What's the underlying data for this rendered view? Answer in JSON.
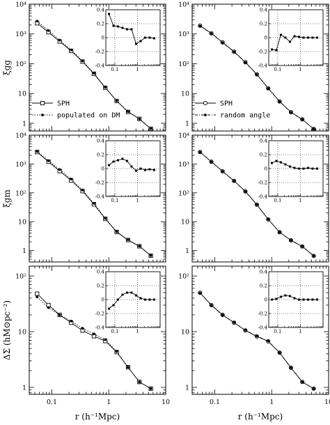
{
  "chart_data": {
    "type": "line",
    "panel_grid": {
      "rows": 3,
      "columns": 2
    },
    "xlabel": "r (h⁻¹Mpc)",
    "xscale": "log",
    "xlim": [
      0.04,
      10
    ],
    "x_ticks": [
      "0.1",
      "1",
      "10"
    ],
    "rows": [
      {
        "ylabel": "ξgg",
        "ylim": [
          0.55,
          10000
        ],
        "yscale": "log",
        "y_ticks": [
          "1",
          "10",
          "10²",
          "10³",
          "10⁴"
        ]
      },
      {
        "ylabel": "ξgm",
        "ylim": [
          0.4,
          10000
        ],
        "yscale": "log",
        "y_ticks": [
          "1",
          "10",
          "10²",
          "10³",
          "10⁴"
        ]
      },
      {
        "ylabel": "ΔΣ (hM⊙pc⁻²)",
        "ylim": [
          0.75,
          150
        ],
        "yscale": "log",
        "y_ticks": [
          "1",
          "10",
          "10²"
        ]
      }
    ],
    "panels": [
      {
        "row": 0,
        "col": 0,
        "legend": [
          "SPH",
          "populated on DM"
        ],
        "series": [
          {
            "name": "SPH",
            "style": "solid-open-square",
            "x": [
              0.055,
              0.087,
              0.137,
              0.218,
              0.345,
              0.548,
              0.868,
              1.376,
              2.18,
              3.45,
              5.48
            ],
            "y": [
              2300,
              1150,
              560,
              270,
              118,
              46,
              15.5,
              5.6,
              2.4,
              1.4,
              0.65
            ]
          },
          {
            "name": "populated on DM",
            "style": "dotted-filled-circle",
            "x": [
              0.055,
              0.087,
              0.137,
              0.218,
              0.345,
              0.548,
              0.868,
              1.376,
              2.18,
              3.45,
              5.48
            ],
            "y": [
              2700,
              1300,
              620,
              290,
              124,
              48,
              16,
              5.7,
              2.45,
              1.4,
              0.66
            ]
          }
        ],
        "inset": {
          "ylim": [
            -0.4,
            0.4
          ],
          "y_ticks": [
            "-0.4",
            "-0.2",
            "0",
            "0.2",
            "0.4"
          ],
          "x_ticks": [
            "0.1",
            "1"
          ],
          "x": [
            0.055,
            0.087,
            0.137,
            0.218,
            0.345,
            0.548,
            0.868,
            1.376,
            2.18,
            3.45,
            5.48
          ],
          "y": [
            0.34,
            0.17,
            0.16,
            0.14,
            0.12,
            0.12,
            -0.09,
            -0.05,
            0.0,
            0.0,
            -0.01
          ]
        }
      },
      {
        "row": 0,
        "col": 1,
        "legend": [
          "SPH",
          "random angle"
        ],
        "series": [
          {
            "name": "SPH",
            "style": "solid-open-circle",
            "x": [
              0.055,
              0.087,
              0.137,
              0.218,
              0.345,
              0.548,
              0.868,
              1.376,
              2.18,
              3.45,
              5.48
            ],
            "y": [
              1900,
              1050,
              520,
              255,
              112,
              44,
              15,
              5.4,
              2.35,
              1.35,
              0.64
            ]
          },
          {
            "name": "random angle",
            "style": "dash-dot-filled-circle",
            "x": [
              0.055,
              0.087,
              0.137,
              0.218,
              0.345,
              0.548,
              0.868,
              1.376,
              2.18,
              3.45,
              5.48
            ],
            "y": [
              1850,
              1040,
              510,
              250,
              110,
              43.5,
              14.8,
              5.35,
              2.33,
              1.34,
              0.64
            ]
          }
        ],
        "inset": {
          "ylim": [
            -0.4,
            0.4
          ],
          "y_ticks": [
            "-0.4",
            "-0.2",
            "0",
            "0.2",
            "0.4"
          ],
          "x_ticks": [
            "0.1",
            "1"
          ],
          "x": [
            0.055,
            0.087,
            0.137,
            0.218,
            0.345,
            0.548,
            0.868,
            1.376,
            2.18,
            3.45,
            5.48
          ],
          "y": [
            -0.17,
            -0.18,
            0.04,
            0.0,
            -0.06,
            0.02,
            0.01,
            0.0,
            0.0,
            0.0,
            0.0
          ]
        }
      },
      {
        "row": 1,
        "col": 0,
        "series": [
          {
            "name": "SPH",
            "style": "solid-open-square",
            "x": [
              0.055,
              0.087,
              0.137,
              0.218,
              0.345,
              0.548,
              0.868,
              1.376,
              2.18,
              3.45,
              5.48
            ],
            "y": [
              2600,
              1200,
              570,
              270,
              115,
              40,
              12.5,
              4.4,
              2.3,
              1.4,
              0.66
            ]
          },
          {
            "name": "populated on DM",
            "style": "dotted-filled-circle",
            "x": [
              0.055,
              0.087,
              0.137,
              0.218,
              0.345,
              0.548,
              0.868,
              1.376,
              2.18,
              3.45,
              5.48
            ],
            "y": [
              2700,
              1300,
              640,
              300,
              125,
              43,
              13,
              4.5,
              2.35,
              1.42,
              0.67
            ]
          }
        ],
        "inset": {
          "ylim": [
            -0.4,
            0.4
          ],
          "y_ticks": [
            "-0.4",
            "-0.2",
            "0",
            "0.2",
            "0.4"
          ],
          "x_ticks": [
            "0.1",
            "1"
          ],
          "x": [
            0.055,
            0.087,
            0.137,
            0.218,
            0.345,
            0.548,
            0.868,
            1.376,
            2.18,
            3.45,
            5.48
          ],
          "y": [
            0.05,
            0.1,
            0.12,
            0.14,
            0.11,
            0.03,
            -0.03,
            0.0,
            -0.02,
            -0.01,
            -0.02
          ]
        }
      },
      {
        "row": 1,
        "col": 1,
        "series": [
          {
            "name": "SPH",
            "style": "solid-open-circle",
            "x": [
              0.055,
              0.087,
              0.137,
              0.218,
              0.345,
              0.548,
              0.868,
              1.376,
              2.18,
              3.45,
              5.48
            ],
            "y": [
              2600,
              1200,
              560,
              260,
              112,
              39,
              12,
              4.3,
              2.25,
              1.38,
              0.65
            ]
          },
          {
            "name": "random angle",
            "style": "dash-dot-filled-circle",
            "x": [
              0.055,
              0.087,
              0.137,
              0.218,
              0.345,
              0.548,
              0.868,
              1.376,
              2.18,
              3.45,
              5.48
            ],
            "y": [
              2580,
              1190,
              555,
              258,
              111,
              38.8,
              12,
              4.3,
              2.25,
              1.38,
              0.65
            ]
          }
        ],
        "inset": {
          "ylim": [
            -0.4,
            0.4
          ],
          "y_ticks": [
            "-0.4",
            "-0.2",
            "0",
            "0.2",
            "0.4"
          ],
          "x_ticks": [
            "0.1",
            "1"
          ],
          "x": [
            0.055,
            0.087,
            0.137,
            0.218,
            0.345,
            0.548,
            0.868,
            1.376,
            2.18,
            3.45,
            5.48
          ],
          "y": [
            0.08,
            0.11,
            0.09,
            0.06,
            0.03,
            0.01,
            0.0,
            0.0,
            0.01,
            0.0,
            0.0
          ]
        }
      },
      {
        "row": 2,
        "col": 0,
        "series": [
          {
            "name": "SPH",
            "style": "solid-open-square",
            "x": [
              0.055,
              0.087,
              0.137,
              0.218,
              0.345,
              0.548,
              0.868,
              1.376,
              2.18,
              3.45,
              5.48
            ],
            "y": [
              48,
              30,
              20,
              14.5,
              10.5,
              8.3,
              6.8,
              4.3,
              2.3,
              1.25,
              0.95
            ]
          },
          {
            "name": "populated on DM",
            "style": "dotted-filled-circle",
            "x": [
              0.055,
              0.087,
              0.137,
              0.218,
              0.345,
              0.548,
              0.868,
              1.376,
              2.18,
              3.45,
              5.48
            ],
            "y": [
              42,
              27,
              20,
              15.5,
              11.5,
              9.1,
              7.2,
              4.4,
              2.3,
              1.25,
              0.95
            ]
          }
        ],
        "inset": {
          "ylim": [
            -0.4,
            0.4
          ],
          "y_ticks": [
            "-0.4",
            "-0.2",
            "0",
            "0.2",
            "0.4"
          ],
          "x_ticks": [
            "0.1",
            "1"
          ],
          "x": [
            0.055,
            0.087,
            0.137,
            0.218,
            0.345,
            0.548,
            0.868,
            1.376,
            2.18,
            3.45,
            5.48
          ],
          "y": [
            -0.13,
            -0.08,
            0.0,
            0.07,
            0.1,
            0.1,
            0.06,
            0.02,
            0.0,
            0.0,
            0.0
          ]
        }
      },
      {
        "row": 2,
        "col": 1,
        "series": [
          {
            "name": "SPH",
            "style": "solid-open-circle",
            "x": [
              0.055,
              0.087,
              0.137,
              0.218,
              0.345,
              0.548,
              0.868,
              1.376,
              2.18,
              3.45,
              5.48
            ],
            "y": [
              50,
              30,
              20,
              14.5,
              10.5,
              8.2,
              6.7,
              4.2,
              2.25,
              1.25,
              0.95
            ]
          },
          {
            "name": "random angle",
            "style": "dash-dot-filled-circle",
            "x": [
              0.055,
              0.087,
              0.137,
              0.218,
              0.345,
              0.548,
              0.868,
              1.376,
              2.18,
              3.45,
              5.48
            ],
            "y": [
              49.5,
              29.8,
              19.9,
              14.6,
              10.6,
              8.3,
              6.8,
              4.2,
              2.25,
              1.25,
              0.95
            ]
          }
        ],
        "inset": {
          "ylim": [
            -0.4,
            0.4
          ],
          "y_ticks": [
            "-0.4",
            "-0.2",
            "0",
            "0.2",
            "0.4"
          ],
          "x_ticks": [
            "0.1",
            "1"
          ],
          "x": [
            0.055,
            0.087,
            0.137,
            0.218,
            0.345,
            0.548,
            0.868,
            1.376,
            2.18,
            3.45,
            5.48
          ],
          "y": [
            0.0,
            0.01,
            0.04,
            0.06,
            0.05,
            0.02,
            0.0,
            0.0,
            0.0,
            0.0,
            0.0
          ]
        }
      }
    ]
  }
}
